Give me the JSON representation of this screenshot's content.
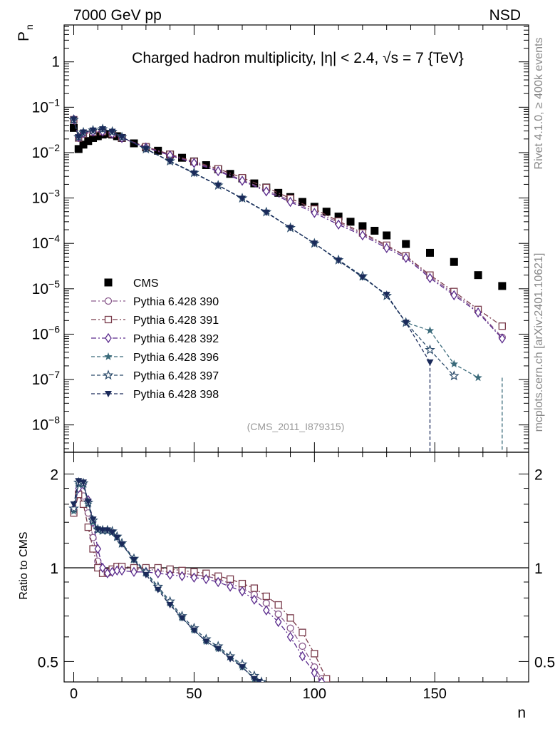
{
  "header": {
    "left": "7000 GeV pp",
    "right": "NSD"
  },
  "side_labels": {
    "rivet": "Rivet 4.1.0, ≥ 400k events",
    "mcplots": "mcplots.cern.ch [arXiv:2401.10621]"
  },
  "chart_data": [
    {
      "type": "scatter",
      "title": "Charged hadron multiplicity, |η| < 2.4, √s = 7 {TeV}",
      "watermark": "(CMS_2011_I879315)",
      "ylabel": "P_n",
      "ylabel_main": "P",
      "ylabel_sub": "n",
      "xlabel": "",
      "yscale": "log",
      "ylim": [
        2.5e-09,
        6.5
      ],
      "xlim": [
        -4,
        189
      ],
      "ytick_labels": [
        {
          "base": "1",
          "exp": ""
        },
        {
          "base": "10",
          "exp": "−1"
        },
        {
          "base": "10",
          "exp": "−2"
        },
        {
          "base": "10",
          "exp": "−3"
        },
        {
          "base": "10",
          "exp": "−4"
        },
        {
          "base": "10",
          "exp": "−5"
        },
        {
          "base": "10",
          "exp": "−6"
        },
        {
          "base": "10",
          "exp": "−7"
        },
        {
          "base": "10",
          "exp": "−8"
        }
      ],
      "legend_position": "middle-left",
      "series": [
        {
          "name": "CMS",
          "marker": "filled-square",
          "color": "#000000",
          "line": "none",
          "x": [
            0,
            2,
            4,
            6,
            8,
            10,
            12,
            14,
            16,
            18,
            20,
            25,
            30,
            35,
            40,
            45,
            50,
            55,
            60,
            65,
            70,
            75,
            80,
            85,
            90,
            95,
            100,
            105,
            110,
            115,
            120,
            125,
            130,
            138,
            148,
            158,
            168,
            178
          ],
          "y": [
            0.035,
            0.012,
            0.015,
            0.018,
            0.021,
            0.023,
            0.025,
            0.026,
            0.025,
            0.023,
            0.021,
            0.016,
            0.013,
            0.011,
            0.0091,
            0.0077,
            0.0064,
            0.0053,
            0.0043,
            0.0034,
            0.0027,
            0.0021,
            0.0017,
            0.0013,
            0.00105,
            0.00082,
            0.00064,
            0.0005,
            0.00039,
            0.0003,
            0.00024,
            0.00019,
            0.00015,
            9.7e-05,
            6.2e-05,
            3.9e-05,
            2e-05,
            1.15e-05
          ]
        },
        {
          "name": "Pythia 6.428 390",
          "marker": "open-circle",
          "color": "#8a5a8c",
          "line": "dash-dot",
          "x": [
            0,
            2,
            4,
            8,
            12,
            16,
            20,
            30,
            40,
            50,
            60,
            70,
            80,
            90,
            100,
            110,
            120,
            130,
            138,
            148,
            158,
            168,
            178
          ],
          "y": [
            0.052,
            0.021,
            0.026,
            0.028,
            0.029,
            0.026,
            0.021,
            0.013,
            0.0088,
            0.0061,
            0.0041,
            0.0025,
            0.0015,
            0.00088,
            0.00051,
            0.00029,
            0.00016,
            8.6e-05,
            5.2e-05,
            1.85e-05,
            7.8e-06,
            3.2e-06,
            8.5e-07
          ]
        },
        {
          "name": "Pythia 6.428 391",
          "marker": "open-square",
          "color": "#7a3c4c",
          "line": "dash-dot",
          "x": [
            0,
            2,
            4,
            8,
            12,
            16,
            20,
            30,
            40,
            50,
            60,
            70,
            80,
            90,
            100,
            110,
            120,
            130,
            138,
            148,
            158,
            168,
            178
          ],
          "y": [
            0.053,
            0.021,
            0.026,
            0.028,
            0.029,
            0.026,
            0.021,
            0.0135,
            0.0092,
            0.0064,
            0.0044,
            0.0028,
            0.0017,
            0.00098,
            0.00057,
            0.00031,
            0.00017,
            9.1e-05,
            5.3e-05,
            2e-05,
            8.7e-06,
            3.5e-06,
            1.5e-06
          ]
        },
        {
          "name": "Pythia 6.428 392",
          "marker": "open-diamond",
          "color": "#5a2a8c",
          "line": "dash-dot",
          "x": [
            0,
            2,
            4,
            8,
            12,
            16,
            20,
            30,
            40,
            50,
            60,
            70,
            80,
            90,
            100,
            110,
            120,
            130,
            138,
            148,
            158,
            168,
            178
          ],
          "y": [
            0.054,
            0.022,
            0.027,
            0.029,
            0.029,
            0.026,
            0.021,
            0.013,
            0.0087,
            0.0059,
            0.0039,
            0.0024,
            0.0014,
            0.00082,
            0.00047,
            0.00026,
            0.00015,
            7.9e-05,
            4.8e-05,
            1.72e-05,
            7.2e-06,
            3e-06,
            8e-07
          ]
        },
        {
          "name": "Pythia 6.428 396",
          "marker": "filled-star",
          "color": "#3a6a7a",
          "line": "dashed",
          "x": [
            0,
            2,
            4,
            8,
            12,
            16,
            20,
            30,
            40,
            50,
            60,
            70,
            80,
            90,
            100,
            110,
            120,
            130,
            138,
            148,
            158,
            168
          ],
          "y": [
            0.052,
            0.022,
            0.028,
            0.031,
            0.033,
            0.029,
            0.022,
            0.012,
            0.0064,
            0.0036,
            0.0019,
            0.00098,
            0.00049,
            0.00022,
            0.0001,
            4.2e-05,
            1.8e-05,
            7.2e-06,
            1.8e-06,
            1.2e-06,
            2.2e-07,
            1.1e-07
          ]
        },
        {
          "name": "Pythia 6.428 397",
          "marker": "open-star",
          "color": "#2a4a6a",
          "line": "dashed",
          "x": [
            0,
            2,
            4,
            8,
            12,
            16,
            20,
            30,
            40,
            50,
            60,
            70,
            80,
            90,
            100,
            110,
            120,
            130,
            138,
            148,
            158
          ],
          "y": [
            0.053,
            0.022,
            0.028,
            0.031,
            0.033,
            0.029,
            0.022,
            0.012,
            0.0065,
            0.0036,
            0.0019,
            0.00099,
            0.00049,
            0.00022,
            0.0001,
            4.3e-05,
            1.9e-05,
            7e-06,
            1.8e-06,
            4.5e-07,
            1.2e-07
          ]
        },
        {
          "name": "Pythia 6.428 398",
          "marker": "filled-triangle-down",
          "color": "#1a2a5a",
          "line": "dashed",
          "x": [
            0,
            2,
            4,
            8,
            12,
            16,
            20,
            30,
            40,
            50,
            60,
            70,
            80,
            90,
            100,
            110,
            120,
            130,
            138,
            148
          ],
          "y": [
            0.054,
            0.022,
            0.028,
            0.031,
            0.033,
            0.029,
            0.022,
            0.012,
            0.0064,
            0.0035,
            0.0019,
            0.00097,
            0.00048,
            0.00022,
            0.0001,
            4.2e-05,
            1.8e-05,
            7.4e-06,
            1.8e-06,
            2.4e-07
          ]
        }
      ]
    },
    {
      "type": "line",
      "title": "",
      "xlabel": "n",
      "ylabel": "Ratio to CMS",
      "yscale": "log",
      "ylim": [
        0.43,
        2.35
      ],
      "xlim": [
        -4,
        189
      ],
      "xticks": [
        0,
        50,
        100,
        150
      ],
      "yticks": [
        0.5,
        1,
        2
      ],
      "ytick_labels": [
        "0.5",
        "1",
        "2"
      ],
      "reference_line": 1,
      "series": [
        {
          "name": "Pythia 6.428 390",
          "color": "#8a5a8c",
          "line": "dash-dot",
          "x": [
            0,
            2,
            4,
            6,
            8,
            10,
            12,
            14,
            16,
            18,
            20,
            25,
            30,
            35,
            40,
            45,
            50,
            55,
            60,
            65,
            70,
            75,
            80,
            85,
            90,
            95,
            100,
            103
          ],
          "y": [
            1.5,
            1.75,
            1.7,
            1.5,
            1.25,
            1.05,
            0.97,
            0.96,
            0.98,
            1.0,
            1.0,
            0.99,
            0.99,
            0.98,
            0.97,
            0.96,
            0.95,
            0.94,
            0.92,
            0.89,
            0.86,
            0.82,
            0.77,
            0.71,
            0.64,
            0.56,
            0.48,
            0.44
          ]
        },
        {
          "name": "Pythia 6.428 391",
          "color": "#7a3c4c",
          "line": "dash-dot",
          "x": [
            0,
            2,
            4,
            6,
            8,
            10,
            12,
            14,
            16,
            18,
            20,
            25,
            30,
            35,
            40,
            45,
            50,
            55,
            60,
            65,
            70,
            75,
            80,
            85,
            90,
            95,
            100,
            105
          ],
          "y": [
            1.5,
            1.72,
            1.6,
            1.35,
            1.15,
            1.0,
            0.96,
            0.97,
            0.99,
            1.01,
            1.01,
            1.0,
            1.0,
            1.0,
            0.99,
            0.98,
            0.97,
            0.96,
            0.94,
            0.92,
            0.89,
            0.86,
            0.81,
            0.76,
            0.69,
            0.62,
            0.53,
            0.44
          ]
        },
        {
          "name": "Pythia 6.428 392",
          "color": "#5a2a8c",
          "line": "dash-dot",
          "x": [
            0,
            2,
            4,
            6,
            8,
            10,
            12,
            14,
            16,
            18,
            20,
            25,
            30,
            35,
            40,
            45,
            50,
            55,
            60,
            65,
            70,
            75,
            80,
            85,
            90,
            95,
            100,
            103
          ],
          "y": [
            1.55,
            1.8,
            1.85,
            1.65,
            1.4,
            1.15,
            1.0,
            0.96,
            0.97,
            0.98,
            0.98,
            0.97,
            0.97,
            0.96,
            0.95,
            0.94,
            0.93,
            0.92,
            0.9,
            0.87,
            0.84,
            0.79,
            0.73,
            0.67,
            0.6,
            0.52,
            0.46,
            0.43
          ]
        },
        {
          "name": "Pythia 6.428 396",
          "color": "#3a6a7a",
          "line": "dashed",
          "x": [
            0,
            2,
            4,
            6,
            8,
            10,
            12,
            14,
            16,
            18,
            20,
            25,
            30,
            35,
            40,
            45,
            50,
            55,
            60,
            65,
            70,
            75,
            78
          ],
          "y": [
            1.52,
            1.85,
            1.85,
            1.6,
            1.4,
            1.32,
            1.31,
            1.31,
            1.3,
            1.25,
            1.19,
            1.06,
            0.96,
            0.86,
            0.77,
            0.69,
            0.63,
            0.58,
            0.55,
            0.52,
            0.48,
            0.44,
            0.43
          ]
        },
        {
          "name": "Pythia 6.428 397",
          "color": "#2a4a6a",
          "line": "dashed",
          "x": [
            0,
            2,
            4,
            6,
            8,
            10,
            12,
            14,
            16,
            18,
            20,
            25,
            30,
            35,
            40,
            45,
            50,
            55,
            60,
            65,
            70,
            75,
            78
          ],
          "y": [
            1.55,
            1.88,
            1.87,
            1.62,
            1.42,
            1.33,
            1.32,
            1.32,
            1.31,
            1.26,
            1.2,
            1.07,
            0.97,
            0.87,
            0.78,
            0.7,
            0.64,
            0.59,
            0.56,
            0.52,
            0.49,
            0.45,
            0.43
          ]
        },
        {
          "name": "Pythia 6.428 398",
          "color": "#1a2a5a",
          "line": "dashed",
          "x": [
            0,
            2,
            4,
            6,
            8,
            10,
            12,
            14,
            16,
            18,
            20,
            25,
            30,
            35,
            40,
            45,
            50,
            55,
            60,
            65,
            70,
            75,
            77
          ],
          "y": [
            1.6,
            1.9,
            1.88,
            1.63,
            1.43,
            1.33,
            1.32,
            1.32,
            1.3,
            1.25,
            1.19,
            1.06,
            0.95,
            0.85,
            0.76,
            0.69,
            0.63,
            0.58,
            0.55,
            0.51,
            0.48,
            0.44,
            0.43
          ]
        }
      ]
    }
  ]
}
